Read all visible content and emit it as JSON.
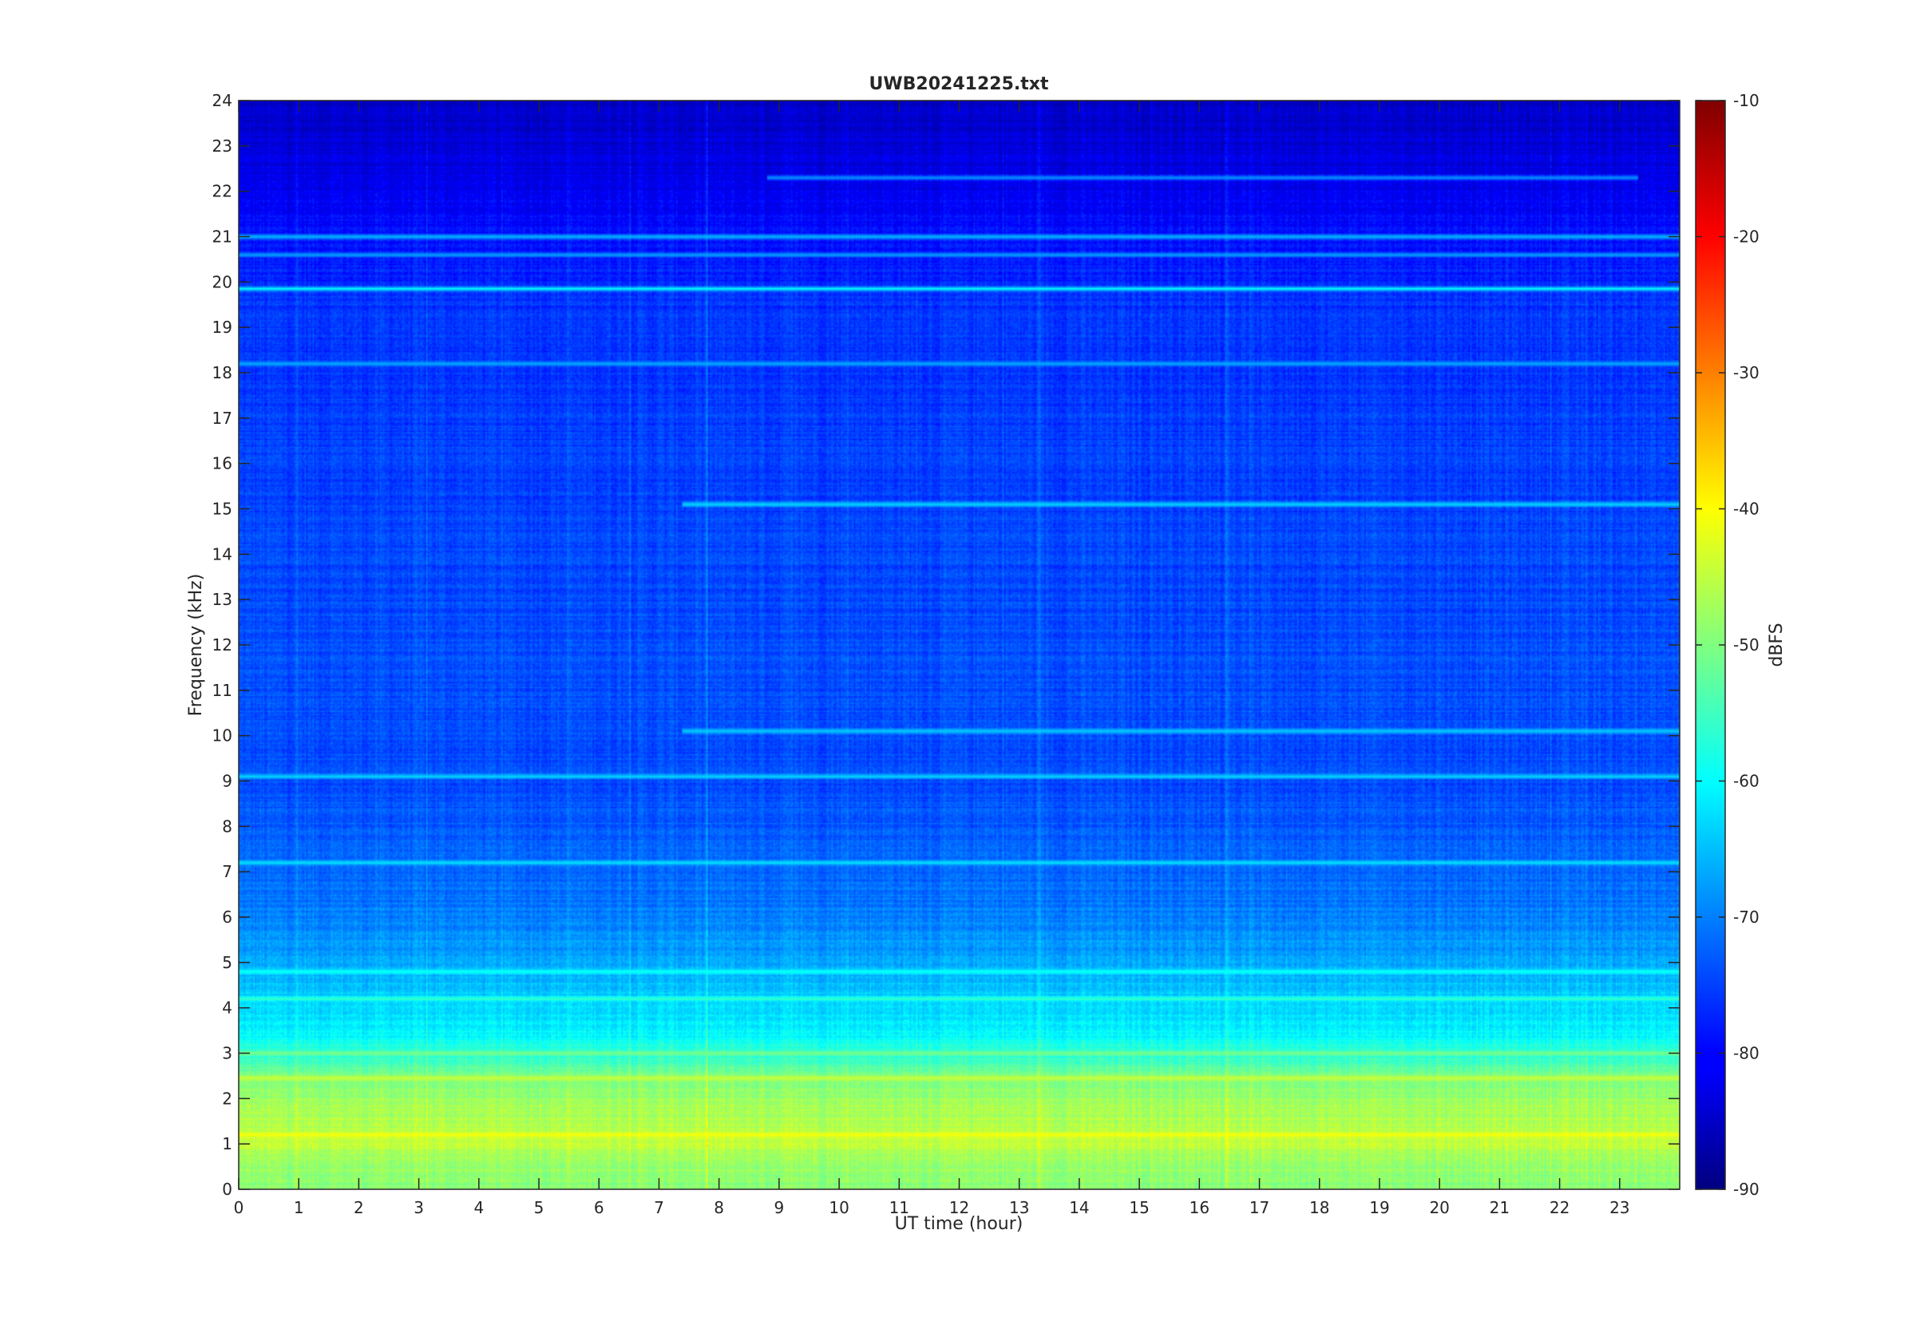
{
  "chart_data": {
    "type": "heatmap",
    "title": "UWB20241225.txt",
    "xlabel": "UT time (hour)",
    "ylabel": "Frequency (kHz)",
    "xlim": [
      0,
      24
    ],
    "ylim": [
      0,
      24
    ],
    "xticks": [
      0,
      1,
      2,
      3,
      4,
      5,
      6,
      7,
      8,
      9,
      10,
      11,
      12,
      13,
      14,
      15,
      16,
      17,
      18,
      19,
      20,
      21,
      22,
      23
    ],
    "yticks": [
      0,
      1,
      2,
      3,
      4,
      5,
      6,
      7,
      8,
      9,
      10,
      11,
      12,
      13,
      14,
      15,
      16,
      17,
      18,
      19,
      20,
      21,
      22,
      23,
      24
    ],
    "colormap": "jet",
    "colorbar": {
      "label": "dBFS",
      "range": [
        -90,
        -10
      ],
      "ticks": [
        -90,
        -80,
        -70,
        -60,
        -50,
        -40,
        -30,
        -20,
        -10
      ]
    },
    "background_profile_dbfs": [
      {
        "freq_khz": 0.0,
        "dbfs": -50
      },
      {
        "freq_khz": 0.5,
        "dbfs": -48
      },
      {
        "freq_khz": 1.0,
        "dbfs": -45
      },
      {
        "freq_khz": 1.5,
        "dbfs": -46
      },
      {
        "freq_khz": 2.0,
        "dbfs": -48
      },
      {
        "freq_khz": 2.5,
        "dbfs": -51
      },
      {
        "freq_khz": 3.0,
        "dbfs": -57
      },
      {
        "freq_khz": 3.5,
        "dbfs": -61
      },
      {
        "freq_khz": 4.0,
        "dbfs": -63
      },
      {
        "freq_khz": 4.5,
        "dbfs": -65
      },
      {
        "freq_khz": 5.0,
        "dbfs": -67
      },
      {
        "freq_khz": 6.0,
        "dbfs": -70
      },
      {
        "freq_khz": 7.0,
        "dbfs": -72
      },
      {
        "freq_khz": 9.0,
        "dbfs": -74
      },
      {
        "freq_khz": 12.0,
        "dbfs": -74
      },
      {
        "freq_khz": 16.0,
        "dbfs": -75
      },
      {
        "freq_khz": 19.5,
        "dbfs": -76
      },
      {
        "freq_khz": 20.5,
        "dbfs": -78
      },
      {
        "freq_khz": 23.5,
        "dbfs": -84
      },
      {
        "freq_khz": 24.0,
        "dbfs": -84
      }
    ],
    "narrowband_lines": [
      {
        "freq_khz": 19.85,
        "dbfs": -60,
        "t_start": 0,
        "t_end": 24
      },
      {
        "freq_khz": 18.2,
        "dbfs": -66,
        "t_start": 0,
        "t_end": 24
      },
      {
        "freq_khz": 21.0,
        "dbfs": -64,
        "t_start": 0,
        "t_end": 24
      },
      {
        "freq_khz": 22.3,
        "dbfs": -67,
        "t_start": 8.8,
        "t_end": 23.3
      },
      {
        "freq_khz": 20.6,
        "dbfs": -67,
        "t_start": 0,
        "t_end": 24
      },
      {
        "freq_khz": 15.1,
        "dbfs": -62,
        "t_start": 7.4,
        "t_end": 24
      },
      {
        "freq_khz": 10.1,
        "dbfs": -63,
        "t_start": 7.4,
        "t_end": 24
      },
      {
        "freq_khz": 9.1,
        "dbfs": -62,
        "t_start": 0,
        "t_end": 24
      },
      {
        "freq_khz": 7.2,
        "dbfs": -61,
        "t_start": 0,
        "t_end": 24
      },
      {
        "freq_khz": 4.8,
        "dbfs": -58,
        "t_start": 0,
        "t_end": 24
      },
      {
        "freq_khz": 4.2,
        "dbfs": -55,
        "t_start": 0,
        "t_end": 24
      },
      {
        "freq_khz": 3.0,
        "dbfs": -50,
        "t_start": 0,
        "t_end": 24
      },
      {
        "freq_khz": 2.45,
        "dbfs": -44,
        "t_start": 0,
        "t_end": 24
      },
      {
        "freq_khz": 1.2,
        "dbfs": -40,
        "t_start": 0,
        "t_end": 24
      }
    ]
  }
}
